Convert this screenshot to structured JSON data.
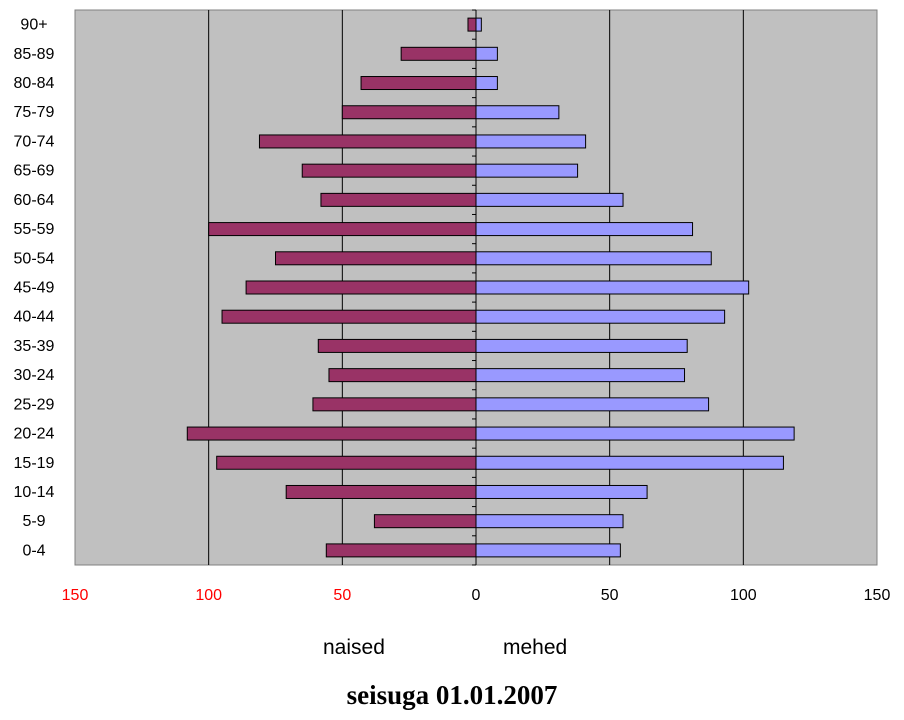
{
  "chart_data": {
    "type": "bar",
    "orientation": "horizontal",
    "layout": "population-pyramid",
    "categories": [
      "0-4",
      "5-9",
      "10-14",
      "15-19",
      "20-24",
      "25-29",
      "30-24",
      "35-39",
      "40-44",
      "45-49",
      "50-54",
      "55-59",
      "60-64",
      "65-69",
      "70-74",
      "75-79",
      "80-84",
      "85-89",
      "90+"
    ],
    "series": [
      {
        "name": "naised",
        "side": "left",
        "color": "#993366",
        "values": [
          56,
          38,
          71,
          97,
          108,
          61,
          55,
          59,
          95,
          86,
          75,
          100,
          58,
          65,
          81,
          50,
          43,
          28,
          3
        ]
      },
      {
        "name": "mehed",
        "side": "right",
        "color": "#9999ff",
        "values": [
          54,
          55,
          64,
          115,
          119,
          87,
          78,
          79,
          93,
          102,
          88,
          81,
          55,
          38,
          41,
          31,
          8,
          8,
          2
        ]
      }
    ],
    "x_ticks_left": [
      "150",
      "100",
      "50"
    ],
    "x_ticks_right": [
      "0",
      "50",
      "100",
      "150"
    ],
    "xlim": [
      -150,
      150
    ],
    "grid": true,
    "grid_spacing": 50,
    "background": "#c0c0c0",
    "left_tick_color": "#ff0000",
    "title": "seisuga 01.01.2007"
  }
}
